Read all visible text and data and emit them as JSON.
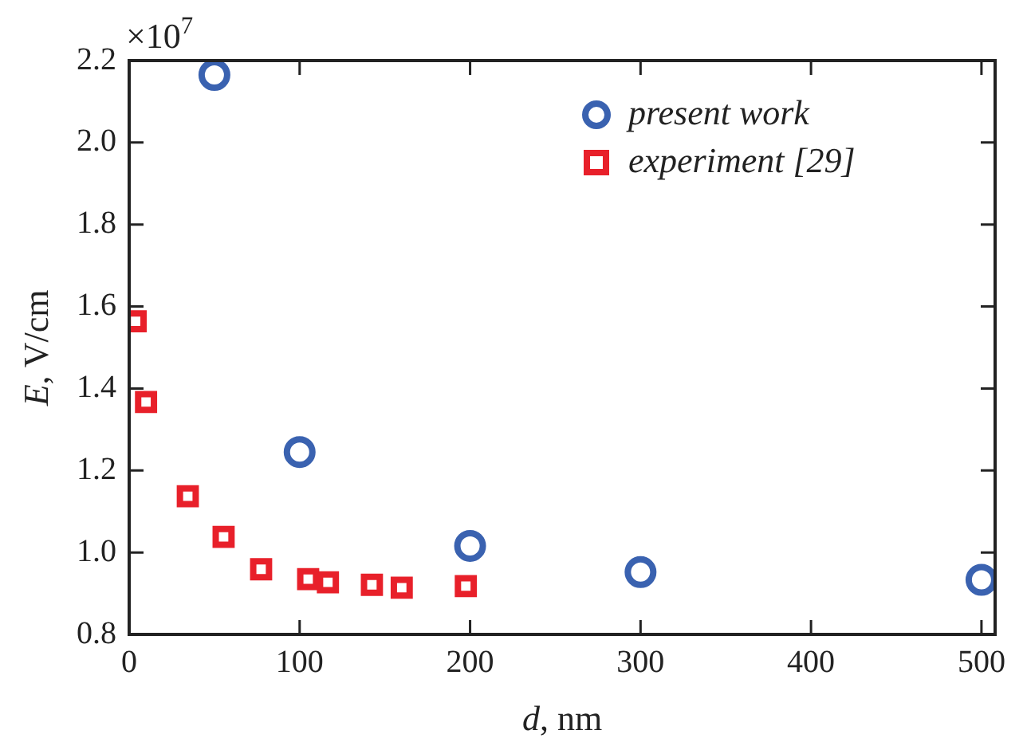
{
  "chart_data": {
    "type": "scatter",
    "xlabel": "d, nm",
    "ylabel": "E, V/cm",
    "annotations": [
      "×10$^{7}$"
    ],
    "xlim": [
      0,
      508
    ],
    "xticks": [
      0,
      100,
      200,
      300,
      400,
      500
    ],
    "ylim": [
      0.8,
      2.2
    ],
    "yticks": [
      0.8,
      {
        "value": 1,
        "label": "1.0"
      },
      1.2,
      1.4,
      1.6,
      1.8,
      {
        "value": 2,
        "label": "2.0"
      },
      2.2
    ],
    "grid": false,
    "legend": "top right",
    "series": [
      {
        "name": "present work",
        "color": "#3a62b0",
        "marker": "circle",
        "x": [
          50,
          100,
          200,
          300,
          500
        ],
        "values": [
          2.165,
          1.245,
          1.016,
          0.952,
          0.933
        ]
      },
      {
        "name": "experiment [29]",
        "color": "#e8202a",
        "marker": "square",
        "x": [
          3.8,
          9.9,
          34.4,
          55.4,
          77.4,
          105,
          116.6,
          142.4,
          159.9,
          197.5
        ],
        "values": [
          1.564,
          1.367,
          1.137,
          1.038,
          0.959,
          0.935,
          0.927,
          0.921,
          0.914,
          0.918
        ]
      }
    ]
  }
}
